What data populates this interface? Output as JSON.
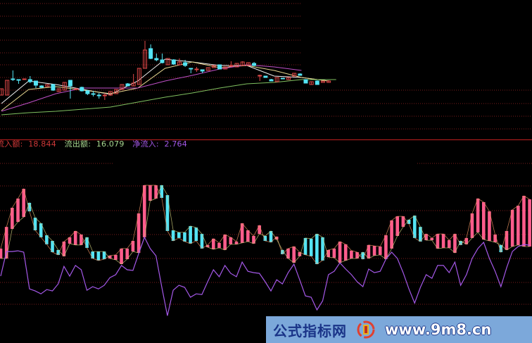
{
  "legend": {
    "inflow_label": "流入额:",
    "inflow_value": "18.844",
    "outflow_label": "流出额:",
    "outflow_value": "16.079",
    "net_label": "净流入:",
    "net_value": "2.764"
  },
  "watermark": {
    "text": "公式指标网",
    "url": "www.9m8.cn"
  },
  "colors": {
    "background": "#000000",
    "up": "#e04848",
    "down": "#54e4f4",
    "bar_up": "#ff5c8c",
    "bar_down": "#54e4f4",
    "grid": "#7a1c1c",
    "separator": "#c02020",
    "net_line": "#a458e8"
  },
  "chart_data": [
    {
      "type": "candlestick",
      "ylim": [
        0,
        20
      ],
      "grid": true,
      "candles": [
        [
          6.5,
          7.4,
          6.5,
          7.4
        ],
        [
          6.5,
          8.6,
          6.5,
          8.6
        ],
        [
          8.8,
          10.0,
          8.5,
          8.7
        ],
        [
          8.7,
          8.7,
          8.1,
          8.6
        ],
        [
          8.7,
          8.8,
          8.7,
          8.8
        ],
        [
          8.7,
          9.2,
          8.2,
          8.4
        ],
        [
          8.5,
          8.5,
          7.5,
          7.9
        ],
        [
          7.8,
          7.9,
          7.5,
          7.6
        ],
        [
          7.7,
          8.0,
          7.7,
          8.0
        ],
        [
          8.0,
          8.1,
          7.1,
          7.2
        ],
        [
          7.0,
          7.4,
          7.0,
          7.4
        ],
        [
          7.2,
          8.3,
          7.2,
          8.3
        ],
        [
          8.6,
          8.6,
          6.0,
          7.8
        ],
        [
          7.3,
          7.5,
          7.2,
          7.4
        ],
        [
          7.6,
          7.7,
          7.0,
          7.1
        ],
        [
          7.1,
          7.2,
          6.5,
          6.7
        ],
        [
          6.7,
          7.1,
          6.3,
          6.6
        ],
        [
          6.5,
          6.8,
          6.0,
          6.4
        ],
        [
          6.5,
          6.8,
          5.8,
          6.5
        ],
        [
          6.5,
          7.0,
          6.4,
          7.0
        ],
        [
          6.7,
          7.3,
          6.7,
          7.3
        ],
        [
          7.3,
          8.0,
          7.3,
          8.0
        ],
        [
          8.1,
          8.2,
          7.8,
          7.8
        ],
        [
          7.8,
          9.5,
          7.8,
          8.2
        ],
        [
          8.0,
          10.3,
          8.0,
          10.3
        ],
        [
          10.3,
          14.2,
          10.3,
          12.9
        ],
        [
          13.1,
          13.7,
          11.6,
          11.7
        ],
        [
          11.7,
          12.4,
          11.3,
          11.5
        ],
        [
          11.5,
          12.4,
          11.0,
          11.1
        ],
        [
          10.8,
          11.7,
          10.8,
          11.7
        ],
        [
          11.5,
          11.6,
          10.8,
          10.9
        ],
        [
          10.8,
          11.7,
          10.7,
          11.2
        ],
        [
          11.1,
          11.5,
          10.5,
          10.7
        ],
        [
          10.3,
          10.3,
          9.6,
          10.2
        ],
        [
          10.2,
          10.5,
          9.8,
          10.2
        ],
        [
          10.1,
          10.1,
          9.6,
          9.9
        ],
        [
          10.0,
          10.4,
          10.0,
          10.4
        ],
        [
          10.4,
          10.7,
          10.4,
          10.7
        ],
        [
          10.8,
          10.8,
          10.2,
          10.2
        ],
        [
          10.2,
          10.5,
          10.2,
          10.5
        ],
        [
          10.7,
          11.3,
          10.5,
          10.7
        ],
        [
          10.5,
          11.0,
          10.5,
          11.0
        ],
        [
          10.7,
          11.3,
          10.7,
          11.2
        ],
        [
          10.7,
          11.1,
          10.7,
          11.1
        ],
        [
          11.0,
          11.2,
          10.6,
          10.7
        ],
        [
          9.2,
          9.4,
          8.5,
          9.3
        ],
        [
          9.2,
          9.2,
          9.0,
          9.0
        ],
        [
          8.7,
          8.8,
          8.5,
          8.5
        ],
        [
          8.4,
          9.0,
          8.4,
          9.0
        ],
        [
          8.9,
          8.9,
          8.8,
          8.8
        ],
        [
          8.7,
          9.0,
          8.7,
          9.0
        ],
        [
          9.2,
          9.6,
          9.2,
          9.6
        ],
        [
          9.5,
          9.6,
          9.3,
          9.3
        ],
        [
          8.7,
          8.7,
          8.2,
          8.2
        ],
        [
          8.0,
          8.4,
          8.0,
          8.4
        ],
        [
          8.5,
          8.6,
          8.0,
          8.0
        ],
        [
          8.3,
          8.5,
          8.3,
          8.5
        ],
        [
          8.3,
          8.6,
          8.3,
          8.5
        ]
      ],
      "ma_lines": [
        {
          "color": "#f0f0f0",
          "points": [
            [
              0,
              5.3
            ],
            [
              4.75,
              8.5
            ],
            [
              9.5,
              8.0
            ],
            [
              14.25,
              7.3
            ],
            [
              19,
              6.6
            ],
            [
              23.75,
              8.5
            ],
            [
              28.5,
              11.6
            ],
            [
              33.25,
              11.2
            ],
            [
              38,
              10.7
            ],
            [
              42.75,
              10.7
            ],
            [
              47.5,
              9.2
            ],
            [
              52.25,
              9.0
            ],
            [
              57,
              8.5
            ]
          ]
        },
        {
          "color": "#e8d890",
          "points": [
            [
              0,
              4.3
            ],
            [
              4.75,
              7.3
            ],
            [
              9.5,
              7.7
            ],
            [
              14.25,
              7.2
            ],
            [
              19,
              6.7
            ],
            [
              23.75,
              7.5
            ],
            [
              28.5,
              10.3
            ],
            [
              33.25,
              11.2
            ],
            [
              38,
              10.4
            ],
            [
              42.75,
              10.7
            ],
            [
              47.5,
              10.0
            ],
            [
              52.25,
              9.0
            ],
            [
              57,
              8.5
            ]
          ]
        },
        {
          "color": "#c050c8",
          "points": [
            [
              0,
              4.2
            ],
            [
              4.75,
              5.4
            ],
            [
              9.5,
              6.7
            ],
            [
              14.25,
              7.5
            ],
            [
              19,
              7.5
            ],
            [
              23.75,
              7.5
            ],
            [
              28.5,
              8.5
            ],
            [
              33.25,
              9.3
            ],
            [
              38,
              10.2
            ],
            [
              42.75,
              10.8
            ],
            [
              47.5,
              10.5
            ],
            [
              52.25,
              10.0
            ]
          ]
        },
        {
          "color": "#80c060",
          "points": [
            [
              0,
              3.7
            ],
            [
              4.75,
              4.0
            ],
            [
              9.5,
              4.2
            ],
            [
              14.25,
              4.5
            ],
            [
              19,
              4.8
            ],
            [
              23.75,
              5.5
            ],
            [
              28.5,
              6.2
            ],
            [
              33.25,
              6.8
            ],
            [
              38,
              7.5
            ],
            [
              42.75,
              8.1
            ],
            [
              47.5,
              8.3
            ],
            [
              52.25,
              8.7
            ],
            [
              58.3,
              8.7
            ]
          ]
        }
      ]
    },
    {
      "type": "bar",
      "ylim": [
        11.75,
        21.65
      ],
      "grid": true,
      "inflow": [
        15.96,
        17.23,
        18.35,
        18.89,
        19.46,
        18.14,
        17.03,
        16.62,
        16.21,
        15.75,
        15.59,
        16.37,
        16.62,
        16.99,
        16.78,
        16.0,
        15.38,
        15.26,
        15.34,
        15.55,
        15.59,
        15.96,
        15.96,
        16.41,
        18.02,
        19.67,
        19.67,
        19.67,
        18.93,
        16.99,
        16.41,
        16.58,
        16.37,
        16.25,
        16.41,
        15.96,
        16.17,
        16.54,
        16.29,
        16.78,
        16.62,
        16.37,
        17.44,
        17.03,
        16.7,
        17.32,
        16.41,
        16.33,
        16.66,
        15.63,
        15.96,
        16.08,
        15.75,
        15.59,
        15.51,
        15.05,
        15.26,
        15.88,
        15.96,
        16.37,
        16.21,
        15.84,
        15.75,
        15.34,
        16.17,
        16.12,
        16.08,
        16.74,
        17.61,
        17.85,
        17.85,
        17.4,
        16.58,
        16.37,
        16.82,
        16.58,
        16.82,
        16.82,
        16.45,
        16.82,
        16.17,
        16.58,
        18.02,
        18.89,
        18.68,
        18.14,
        16.78,
        15.75,
        16.99,
        18.23,
        18.47,
        19.05,
        18.844
      ],
      "outflow": [
        15.38,
        15.38,
        17.11,
        17.52,
        17.81,
        18.64,
        17.77,
        17.44,
        16.74,
        16.41,
        15.88,
        15.51,
        16.25,
        16.17,
        16.17,
        16.62,
        15.79,
        15.79,
        15.79,
        15.38,
        15.3,
        15.05,
        15.34,
        15.79,
        15.71,
        16.62,
        18.76,
        18.89,
        19.67,
        19.09,
        17.03,
        16.91,
        16.91,
        17.28,
        17.19,
        16.82,
        16.04,
        15.92,
        16.0,
        15.88,
        16.21,
        16.21,
        16.29,
        16.37,
        16.25,
        16.82,
        16.7,
        16.99,
        16.49,
        15.88,
        15.38,
        15.13,
        15.51,
        16.58,
        16.54,
        16.82,
        16.62,
        15.46,
        15.42,
        15.13,
        15.26,
        15.38,
        15.38,
        15.75,
        15.38,
        15.55,
        15.59,
        15.34,
        15.96,
        16.7,
        17.23,
        17.65,
        17.89,
        17.23,
        16.45,
        16.45,
        15.96,
        16.0,
        16.0,
        15.71,
        16.41,
        16.21,
        16.58,
        16.91,
        16.49,
        16.41,
        16.33,
        16.17,
        15.88,
        16.08,
        16.17,
        16.08,
        16.079
      ],
      "net_line": [
        14.35,
        15.79,
        15.79,
        15.83,
        15.75,
        13.6,
        13.48,
        13.31,
        13.56,
        13.48,
        13.89,
        14.92,
        14.35,
        14.97,
        14.72,
        13.52,
        13.73,
        13.6,
        13.81,
        14.26,
        14.43,
        14.97,
        14.72,
        14.68,
        15.67,
        16.62,
        15.96,
        15.54,
        13.73,
        12.03,
        13.52,
        13.81,
        13.69,
        13.11,
        13.31,
        13.27,
        14.02,
        14.72,
        14.31,
        14.97,
        14.51,
        14.31,
        15.17,
        14.63,
        14.55,
        14.51,
        14.02,
        13.48,
        14.14,
        13.89,
        14.55,
        15.05,
        14.14,
        13.19,
        13.11,
        12.37,
        12.9,
        14.43,
        14.63,
        15.13,
        14.76,
        14.43,
        14.02,
        13.73,
        14.76,
        14.55,
        14.63,
        15.34,
        15.75,
        15.38,
        14.55,
        13.6,
        12.77,
        13.69,
        14.43,
        14.22,
        14.97,
        14.97,
        14.55,
        15.17,
        13.81,
        14.43,
        15.38,
        15.96,
        16.33,
        15.38,
        14.63,
        13.73,
        14.84,
        15.79,
        16.08,
        16.2,
        16.16
      ]
    }
  ]
}
